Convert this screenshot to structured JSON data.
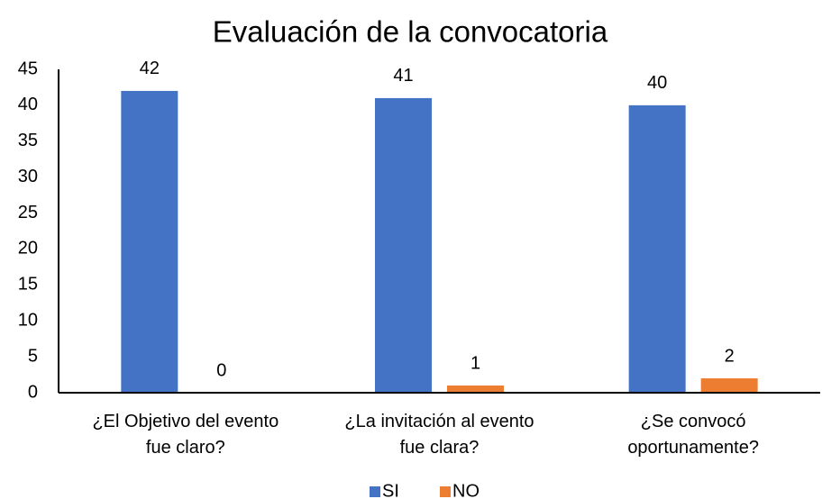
{
  "chart_data": {
    "type": "bar",
    "title": "Evaluación de la convocatoria",
    "categories": [
      "¿El Objetivo del evento fue claro?",
      "¿La invitación al evento fue clara?",
      "¿Se convocó oportunamente?"
    ],
    "series": [
      {
        "name": "SI",
        "color": "#4472c4",
        "values": [
          42,
          41,
          40
        ]
      },
      {
        "name": "NO",
        "color": "#ed7d31",
        "values": [
          0,
          1,
          2
        ]
      }
    ],
    "ylim": [
      0,
      45
    ],
    "yticks": [
      0,
      5,
      10,
      15,
      20,
      25,
      30,
      35,
      40,
      45
    ],
    "grid": false,
    "legend": "bottom"
  }
}
